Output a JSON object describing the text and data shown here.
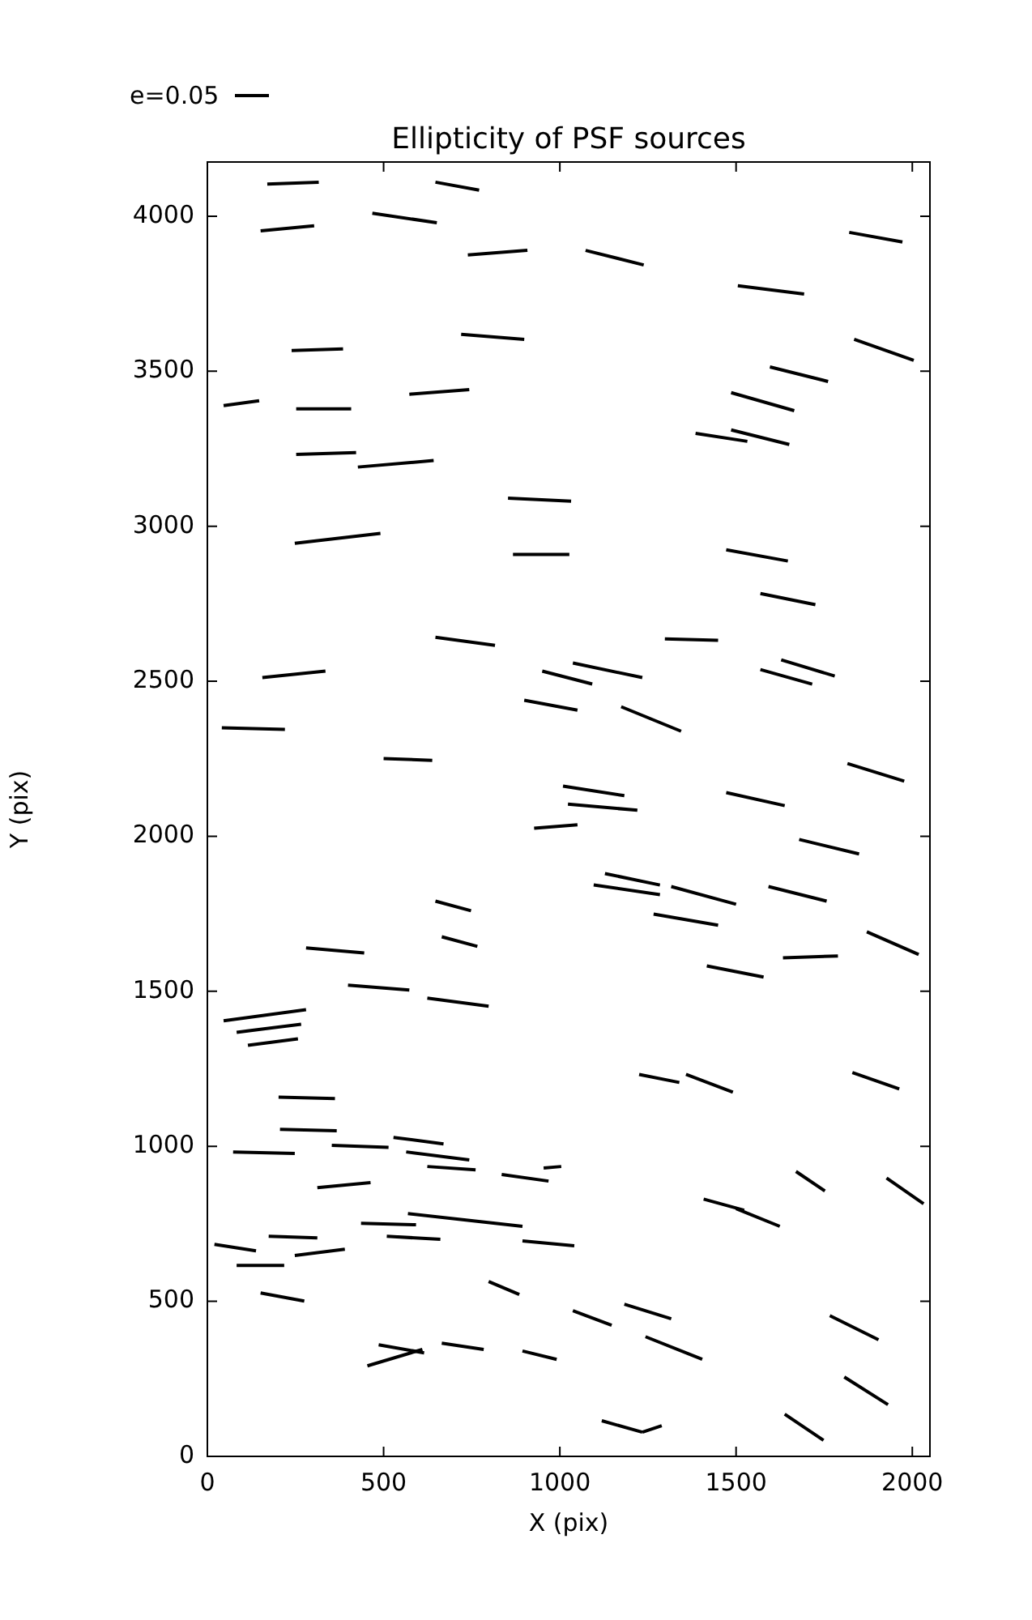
{
  "chart_data": {
    "type": "line",
    "title": "Ellipticity of PSF sources",
    "xlabel": "X (pix)",
    "ylabel": "Y (pix)",
    "annotations": [
      "e=0.05"
    ],
    "marker": "none",
    "line_style": "solid",
    "xlim": [
      0,
      2050
    ],
    "ylim": [
      0,
      4175
    ],
    "xticks": [
      0,
      500,
      1000,
      1500,
      2000
    ],
    "yticks": [
      0,
      500,
      1000,
      1500,
      2000,
      2500,
      3000,
      3500,
      4000
    ],
    "series": [
      {
        "color": "#000000",
        "x": [
          170,
          316
        ],
        "values": [
          4104,
          4110
        ]
      },
      {
        "color": "#000000",
        "x": [
          647,
          771
        ],
        "values": [
          4110,
          4084
        ]
      },
      {
        "color": "#000000",
        "x": [
          151,
          303
        ],
        "values": [
          3953,
          3969
        ]
      },
      {
        "color": "#000000",
        "x": [
          468,
          651
        ],
        "values": [
          4010,
          3979
        ]
      },
      {
        "color": "#000000",
        "x": [
          739,
          908
        ],
        "values": [
          3875,
          3890
        ]
      },
      {
        "color": "#000000",
        "x": [
          1073,
          1238
        ],
        "values": [
          3890,
          3843
        ]
      },
      {
        "color": "#000000",
        "x": [
          1821,
          1972
        ],
        "values": [
          3948,
          3917
        ]
      },
      {
        "color": "#000000",
        "x": [
          1505,
          1693
        ],
        "values": [
          3776,
          3749
        ]
      },
      {
        "color": "#000000",
        "x": [
          239,
          385
        ],
        "values": [
          3567,
          3572
        ]
      },
      {
        "color": "#000000",
        "x": [
          720,
          899
        ],
        "values": [
          3619,
          3603
        ]
      },
      {
        "color": "#000000",
        "x": [
          1835,
          2004
        ],
        "values": [
          3603,
          3535
        ]
      },
      {
        "color": "#000000",
        "x": [
          1596,
          1761
        ],
        "values": [
          3514,
          3467
        ]
      },
      {
        "color": "#000000",
        "x": [
          46,
          147
        ],
        "values": [
          3389,
          3405
        ]
      },
      {
        "color": "#000000",
        "x": [
          252,
          408
        ],
        "values": [
          3379,
          3379
        ]
      },
      {
        "color": "#000000",
        "x": [
          573,
          743
        ],
        "values": [
          3426,
          3441
        ]
      },
      {
        "color": "#000000",
        "x": [
          1486,
          1665
        ],
        "values": [
          3431,
          3373
        ]
      },
      {
        "color": "#000000",
        "x": [
          252,
          422
        ],
        "values": [
          3232,
          3238
        ]
      },
      {
        "color": "#000000",
        "x": [
          427,
          642
        ],
        "values": [
          3191,
          3212
        ]
      },
      {
        "color": "#000000",
        "x": [
          1385,
          1532
        ],
        "values": [
          3300,
          3274
        ]
      },
      {
        "color": "#000000",
        "x": [
          1486,
          1651
        ],
        "values": [
          3311,
          3264
        ]
      },
      {
        "color": "#000000",
        "x": [
          853,
          1032
        ],
        "values": [
          3091,
          3081
        ]
      },
      {
        "color": "#000000",
        "x": [
          248,
          491
        ],
        "values": [
          2945,
          2977
        ]
      },
      {
        "color": "#000000",
        "x": [
          867,
          1027
        ],
        "values": [
          2909,
          2909
        ]
      },
      {
        "color": "#000000",
        "x": [
          1472,
          1647
        ],
        "values": [
          2924,
          2888
        ]
      },
      {
        "color": "#000000",
        "x": [
          1569,
          1725
        ],
        "values": [
          2783,
          2747
        ]
      },
      {
        "color": "#000000",
        "x": [
          647,
          816
        ],
        "values": [
          2642,
          2616
        ]
      },
      {
        "color": "#000000",
        "x": [
          1298,
          1449
        ],
        "values": [
          2637,
          2632
        ]
      },
      {
        "color": "#000000",
        "x": [
          156,
          335
        ],
        "values": [
          2512,
          2533
        ]
      },
      {
        "color": "#000000",
        "x": [
          1037,
          1234
        ],
        "values": [
          2559,
          2512
        ]
      },
      {
        "color": "#000000",
        "x": [
          950,
          1092
        ],
        "values": [
          2533,
          2491
        ]
      },
      {
        "color": "#000000",
        "x": [
          1569,
          1716
        ],
        "values": [
          2538,
          2491
        ]
      },
      {
        "color": "#000000",
        "x": [
          1628,
          1780
        ],
        "values": [
          2569,
          2517
        ]
      },
      {
        "color": "#000000",
        "x": [
          899,
          1050
        ],
        "values": [
          2439,
          2407
        ]
      },
      {
        "color": "#000000",
        "x": [
          1174,
          1344
        ],
        "values": [
          2418,
          2339
        ]
      },
      {
        "color": "#000000",
        "x": [
          41,
          220
        ],
        "values": [
          2350,
          2345
        ]
      },
      {
        "color": "#000000",
        "x": [
          500,
          638
        ],
        "values": [
          2251,
          2245
        ]
      },
      {
        "color": "#000000",
        "x": [
          1816,
          1977
        ],
        "values": [
          2235,
          2178
        ]
      },
      {
        "color": "#000000",
        "x": [
          1009,
          1183
        ],
        "values": [
          2162,
          2131
        ]
      },
      {
        "color": "#000000",
        "x": [
          1023,
          1220
        ],
        "values": [
          2104,
          2084
        ]
      },
      {
        "color": "#000000",
        "x": [
          1472,
          1638
        ],
        "values": [
          2141,
          2099
        ]
      },
      {
        "color": "#000000",
        "x": [
          927,
          1050
        ],
        "values": [
          2026,
          2037
        ]
      },
      {
        "color": "#000000",
        "x": [
          1679,
          1849
        ],
        "values": [
          1990,
          1943
        ]
      },
      {
        "color": "#000000",
        "x": [
          1128,
          1284
        ],
        "values": [
          1880,
          1843
        ]
      },
      {
        "color": "#000000",
        "x": [
          1096,
          1284
        ],
        "values": [
          1843,
          1812
        ]
      },
      {
        "color": "#000000",
        "x": [
          1316,
          1500
        ],
        "values": [
          1838,
          1781
        ]
      },
      {
        "color": "#000000",
        "x": [
          1592,
          1757
        ],
        "values": [
          1838,
          1791
        ]
      },
      {
        "color": "#000000",
        "x": [
          647,
          748
        ],
        "values": [
          1791,
          1760
        ]
      },
      {
        "color": "#000000",
        "x": [
          1266,
          1449
        ],
        "values": [
          1749,
          1713
        ]
      },
      {
        "color": "#000000",
        "x": [
          665,
          766
        ],
        "values": [
          1676,
          1645
        ]
      },
      {
        "color": "#000000",
        "x": [
          1417,
          1578
        ],
        "values": [
          1582,
          1546
        ]
      },
      {
        "color": "#000000",
        "x": [
          1633,
          1789
        ],
        "values": [
          1608,
          1614
        ]
      },
      {
        "color": "#000000",
        "x": [
          1871,
          2018
        ],
        "values": [
          1692,
          1619
        ]
      },
      {
        "color": "#000000",
        "x": [
          280,
          445
        ],
        "values": [
          1640,
          1624
        ]
      },
      {
        "color": "#000000",
        "x": [
          399,
          573
        ],
        "values": [
          1520,
          1504
        ]
      },
      {
        "color": "#000000",
        "x": [
          624,
          798
        ],
        "values": [
          1478,
          1452
        ]
      },
      {
        "color": "#000000",
        "x": [
          46,
          280
        ],
        "values": [
          1405,
          1441
        ]
      },
      {
        "color": "#000000",
        "x": [
          83,
          266
        ],
        "values": [
          1368,
          1394
        ]
      },
      {
        "color": "#000000",
        "x": [
          115,
          257
        ],
        "values": [
          1326,
          1347
        ]
      },
      {
        "color": "#000000",
        "x": [
          202,
          362
        ],
        "values": [
          1159,
          1154
        ]
      },
      {
        "color": "#000000",
        "x": [
          206,
          367
        ],
        "values": [
          1055,
          1050
        ]
      },
      {
        "color": "#000000",
        "x": [
          353,
          514
        ],
        "values": [
          1003,
          997
        ]
      },
      {
        "color": "#000000",
        "x": [
          528,
          670
        ],
        "values": [
          1029,
          1008
        ]
      },
      {
        "color": "#000000",
        "x": [
          564,
          743
        ],
        "values": [
          982,
          956
        ]
      },
      {
        "color": "#000000",
        "x": [
          624,
          761
        ],
        "values": [
          935,
          924
        ]
      },
      {
        "color": "#000000",
        "x": [
          73,
          248
        ],
        "values": [
          982,
          977
        ]
      },
      {
        "color": "#000000",
        "x": [
          312,
          463
        ],
        "values": [
          867,
          883
        ]
      },
      {
        "color": "#000000",
        "x": [
          835,
          968
        ],
        "values": [
          909,
          888
        ]
      },
      {
        "color": "#000000",
        "x": [
          954,
          1004
        ],
        "values": [
          930,
          935
        ]
      },
      {
        "color": "#000000",
        "x": [
          1225,
          1339
        ],
        "values": [
          1232,
          1206
        ]
      },
      {
        "color": "#000000",
        "x": [
          1358,
          1491
        ],
        "values": [
          1232,
          1175
        ]
      },
      {
        "color": "#000000",
        "x": [
          1830,
          1963
        ],
        "values": [
          1238,
          1185
        ]
      },
      {
        "color": "#000000",
        "x": [
          436,
          592
        ],
        "values": [
          752,
          747
        ]
      },
      {
        "color": "#000000",
        "x": [
          509,
          661
        ],
        "values": [
          710,
          700
        ]
      },
      {
        "color": "#000000",
        "x": [
          569,
          734,
          894
        ],
        "values": [
          783,
          762,
          742
        ]
      },
      {
        "color": "#000000",
        "x": [
          894,
          1041
        ],
        "values": [
          695,
          679
        ]
      },
      {
        "color": "#000000",
        "x": [
          20,
          138
        ],
        "values": [
          684,
          663
        ]
      },
      {
        "color": "#000000",
        "x": [
          174,
          312
        ],
        "values": [
          710,
          705
        ]
      },
      {
        "color": "#000000",
        "x": [
          83,
          218
        ],
        "values": [
          616,
          616
        ]
      },
      {
        "color": "#000000",
        "x": [
          248,
          390
        ],
        "values": [
          648,
          668
        ]
      },
      {
        "color": "#000000",
        "x": [
          151,
          275
        ],
        "values": [
          527,
          501
        ]
      },
      {
        "color": "#000000",
        "x": [
          1408,
          1523
        ],
        "values": [
          830,
          794
        ]
      },
      {
        "color": "#000000",
        "x": [
          1500,
          1624
        ],
        "values": [
          799,
          742
        ]
      },
      {
        "color": "#000000",
        "x": [
          1670,
          1752
        ],
        "values": [
          919,
          856
        ]
      },
      {
        "color": "#000000",
        "x": [
          1927,
          2032
        ],
        "values": [
          898,
          815
        ]
      },
      {
        "color": "#000000",
        "x": [
          798,
          885
        ],
        "values": [
          564,
          522
        ]
      },
      {
        "color": "#000000",
        "x": [
          1037,
          1147
        ],
        "values": [
          470,
          423
        ]
      },
      {
        "color": "#000000",
        "x": [
          1183,
          1316
        ],
        "values": [
          491,
          444
        ]
      },
      {
        "color": "#000000",
        "x": [
          1243,
          1404
        ],
        "values": [
          386,
          313
        ]
      },
      {
        "color": "#000000",
        "x": [
          1766,
          1904
        ],
        "values": [
          454,
          376
        ]
      },
      {
        "color": "#000000",
        "x": [
          1807,
          1931
        ],
        "values": [
          256,
          167
        ]
      },
      {
        "color": "#000000",
        "x": [
          1638,
          1748
        ],
        "values": [
          136,
          52
        ]
      },
      {
        "color": "#000000",
        "x": [
          486,
          615
        ],
        "values": [
          360,
          334
        ]
      },
      {
        "color": "#000000",
        "x": [
          454,
          610
        ],
        "values": [
          292,
          345
        ]
      },
      {
        "color": "#000000",
        "x": [
          665,
          784
        ],
        "values": [
          365,
          345
        ]
      },
      {
        "color": "#000000",
        "x": [
          894,
          991
        ],
        "values": [
          340,
          313
        ]
      },
      {
        "color": "#000000",
        "x": [
          1119,
          1234
        ],
        "values": [
          115,
          78
        ]
      },
      {
        "color": "#000000",
        "x": [
          1234,
          1289
        ],
        "values": [
          78,
          99
        ]
      }
    ]
  }
}
